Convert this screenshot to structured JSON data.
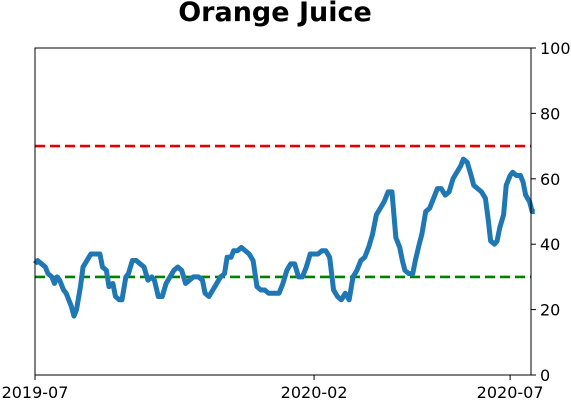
{
  "chart_data": {
    "type": "line",
    "title": "Orange Juice",
    "xlabel": "",
    "ylabel": "",
    "x_ticks": [
      "2019-07",
      "2020-02",
      "2020-07"
    ],
    "x_range": [
      "2019-07-01",
      "2020-07-01"
    ],
    "y_axis_side": "right",
    "y_ticks": [
      "0",
      "20",
      "40",
      "60",
      "80",
      "100"
    ],
    "ylim": [
      0,
      100
    ],
    "grid": false,
    "legend": "none",
    "reference_lines": [
      {
        "value": 70,
        "color": "#e00000",
        "style": "dashed"
      },
      {
        "value": 30,
        "color": "#008000",
        "style": "dashed"
      }
    ],
    "series": [
      {
        "color": "#1f77b4",
        "points": [
          [
            "2019-07-01",
            34
          ],
          [
            "2019-07-03",
            35
          ],
          [
            "2019-07-06",
            34
          ],
          [
            "2019-07-09",
            33
          ],
          [
            "2019-07-11",
            31
          ],
          [
            "2019-07-14",
            30
          ],
          [
            "2019-07-16",
            28
          ],
          [
            "2019-07-18",
            30
          ],
          [
            "2019-07-20",
            29
          ],
          [
            "2019-07-23",
            26
          ],
          [
            "2019-07-25",
            25
          ],
          [
            "2019-07-27",
            23
          ],
          [
            "2019-07-29",
            21
          ],
          [
            "2019-07-31",
            18
          ],
          [
            "2019-08-02",
            20
          ],
          [
            "2019-08-05",
            27
          ],
          [
            "2019-08-07",
            33
          ],
          [
            "2019-08-10",
            35
          ],
          [
            "2019-08-13",
            37
          ],
          [
            "2019-08-17",
            37
          ],
          [
            "2019-08-20",
            37
          ],
          [
            "2019-08-22",
            33
          ],
          [
            "2019-08-25",
            32
          ],
          [
            "2019-08-27",
            27
          ],
          [
            "2019-08-30",
            28
          ],
          [
            "2019-09-01",
            24
          ],
          [
            "2019-09-04",
            23
          ],
          [
            "2019-09-06",
            23
          ],
          [
            "2019-09-09",
            30
          ],
          [
            "2019-09-11",
            31
          ],
          [
            "2019-09-14",
            35
          ],
          [
            "2019-09-17",
            35
          ],
          [
            "2019-09-20",
            34
          ],
          [
            "2019-09-23",
            33
          ],
          [
            "2019-09-26",
            29
          ],
          [
            "2019-09-29",
            30
          ],
          [
            "2019-10-01",
            29
          ],
          [
            "2019-10-04",
            24
          ],
          [
            "2019-10-07",
            24
          ],
          [
            "2019-10-10",
            28
          ],
          [
            "2019-10-13",
            30
          ],
          [
            "2019-10-16",
            32
          ],
          [
            "2019-10-19",
            33
          ],
          [
            "2019-10-22",
            32
          ],
          [
            "2019-10-25",
            28
          ],
          [
            "2019-10-28",
            29
          ],
          [
            "2019-10-31",
            30
          ],
          [
            "2019-11-04",
            30
          ],
          [
            "2019-11-07",
            29
          ],
          [
            "2019-11-09",
            25
          ],
          [
            "2019-11-12",
            24
          ],
          [
            "2019-11-15",
            26
          ],
          [
            "2019-11-18",
            28
          ],
          [
            "2019-11-21",
            30
          ],
          [
            "2019-11-24",
            31
          ],
          [
            "2019-11-26",
            36
          ],
          [
            "2019-11-29",
            36
          ],
          [
            "2019-12-01",
            38
          ],
          [
            "2019-12-04",
            38
          ],
          [
            "2019-12-07",
            39
          ],
          [
            "2019-12-10",
            38
          ],
          [
            "2019-12-13",
            37
          ],
          [
            "2019-12-16",
            35
          ],
          [
            "2019-12-19",
            27
          ],
          [
            "2019-12-22",
            26
          ],
          [
            "2019-12-25",
            26
          ],
          [
            "2019-12-28",
            25
          ],
          [
            "2020-01-01",
            25
          ],
          [
            "2020-01-05",
            25
          ],
          [
            "2020-01-08",
            28
          ],
          [
            "2020-01-11",
            32
          ],
          [
            "2020-01-14",
            34
          ],
          [
            "2020-01-17",
            34
          ],
          [
            "2020-01-20",
            30
          ],
          [
            "2020-01-23",
            30
          ],
          [
            "2020-01-26",
            33
          ],
          [
            "2020-01-29",
            37
          ],
          [
            "2020-02-01",
            37
          ],
          [
            "2020-02-04",
            37
          ],
          [
            "2020-02-07",
            38
          ],
          [
            "2020-02-10",
            38
          ],
          [
            "2020-02-13",
            36
          ],
          [
            "2020-02-16",
            26
          ],
          [
            "2020-02-19",
            24
          ],
          [
            "2020-02-22",
            23
          ],
          [
            "2020-02-25",
            25
          ],
          [
            "2020-02-28",
            23
          ],
          [
            "2020-03-02",
            30
          ],
          [
            "2020-03-05",
            32
          ],
          [
            "2020-03-08",
            35
          ],
          [
            "2020-03-11",
            36
          ],
          [
            "2020-03-14",
            39
          ],
          [
            "2020-03-17",
            43
          ],
          [
            "2020-03-20",
            49
          ],
          [
            "2020-03-23",
            51
          ],
          [
            "2020-03-26",
            53
          ],
          [
            "2020-03-29",
            56
          ],
          [
            "2020-04-01",
            56
          ],
          [
            "2020-04-04",
            42
          ],
          [
            "2020-04-07",
            39
          ],
          [
            "2020-04-09",
            35
          ],
          [
            "2020-04-11",
            32
          ],
          [
            "2020-04-14",
            31
          ],
          [
            "2020-04-17",
            31
          ],
          [
            "2020-04-19",
            35
          ],
          [
            "2020-04-22",
            40
          ],
          [
            "2020-04-24",
            43
          ],
          [
            "2020-04-27",
            50
          ],
          [
            "2020-04-30",
            51
          ],
          [
            "2020-05-03",
            54
          ],
          [
            "2020-05-06",
            57
          ],
          [
            "2020-05-09",
            57
          ],
          [
            "2020-05-12",
            55
          ],
          [
            "2020-05-15",
            56
          ],
          [
            "2020-05-18",
            60
          ],
          [
            "2020-05-21",
            62
          ],
          [
            "2020-05-24",
            64
          ],
          [
            "2020-05-26",
            66
          ],
          [
            "2020-05-29",
            65
          ],
          [
            "2020-06-01",
            61
          ],
          [
            "2020-06-03",
            58
          ],
          [
            "2020-06-06",
            57
          ],
          [
            "2020-06-09",
            56
          ],
          [
            "2020-06-12",
            54
          ],
          [
            "2020-06-14",
            48
          ],
          [
            "2020-06-16",
            41
          ],
          [
            "2020-06-19",
            40
          ],
          [
            "2020-06-21",
            41
          ],
          [
            "2020-06-23",
            45
          ],
          [
            "2020-06-26",
            49
          ],
          [
            "2020-06-28",
            58
          ],
          [
            "2020-07-01",
            61
          ],
          [
            "2020-07-03",
            62
          ],
          [
            "2020-07-06",
            61
          ],
          [
            "2020-07-09",
            61
          ],
          [
            "2020-07-11",
            59
          ],
          [
            "2020-07-13",
            55
          ],
          [
            "2020-07-16",
            53
          ],
          [
            "2020-07-18",
            50
          ],
          [
            "2020-07-20",
            50
          ]
        ]
      }
    ]
  }
}
